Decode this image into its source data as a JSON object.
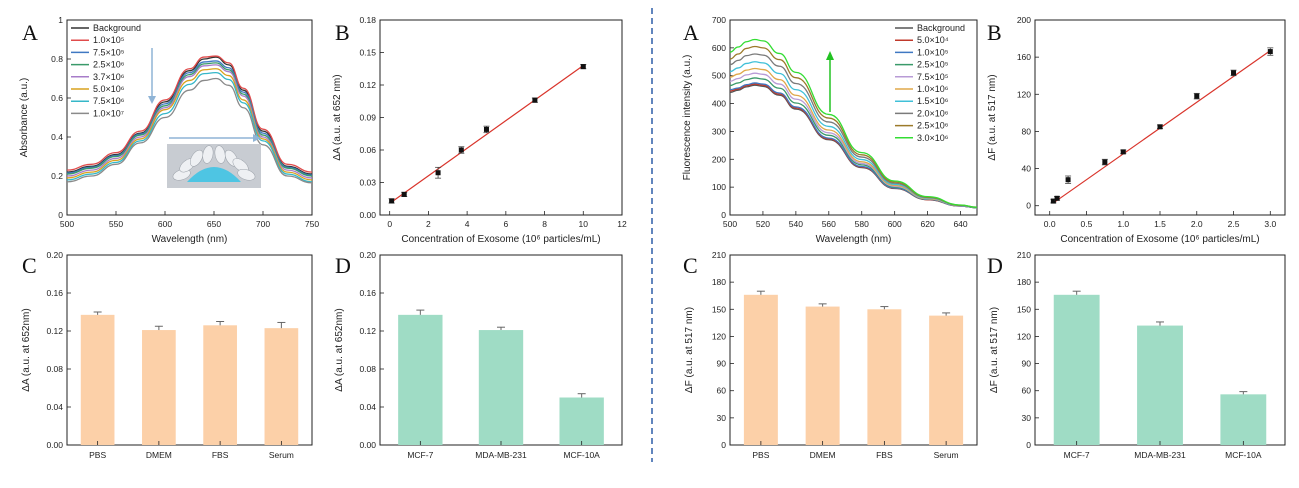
{
  "colors": {
    "divider": "#2f5fa8",
    "bar_blue": "#cfe6f7",
    "bar_pink": "#f5cfe0",
    "bar_orange": "#fcd0a8",
    "bar_green": "#9fdcc5",
    "fit_line": "#d9342b",
    "arrow_blue": "#8fb4d6",
    "arrow_green": "#22c222"
  },
  "chart_data": [
    {
      "panel": "A",
      "type": "line",
      "xlabel": "Wavelength (nm)",
      "ylabel": "Absorbance (a.u.)",
      "xlim": [
        500,
        750
      ],
      "ylim": [
        0,
        1.0
      ],
      "xticks": [
        500,
        550,
        600,
        650,
        700,
        750
      ],
      "yticks": [
        0.0,
        0.2,
        0.4,
        0.6,
        0.8,
        1.0
      ],
      "legend_position": "top-left",
      "x": [
        500,
        525,
        550,
        575,
        600,
        625,
        640,
        652,
        665,
        680,
        700,
        725,
        750
      ],
      "series": [
        {
          "name": "Background",
          "color": "#333333",
          "values": [
            0.22,
            0.25,
            0.31,
            0.42,
            0.58,
            0.74,
            0.8,
            0.81,
            0.77,
            0.64,
            0.43,
            0.25,
            0.21
          ]
        },
        {
          "name": "1.0×10⁵",
          "color": "#e04b4b",
          "values": [
            0.23,
            0.26,
            0.32,
            0.43,
            0.59,
            0.75,
            0.81,
            0.815,
            0.78,
            0.65,
            0.44,
            0.26,
            0.22
          ]
        },
        {
          "name": "7.5×10⁵",
          "color": "#3f78c2",
          "values": [
            0.215,
            0.245,
            0.305,
            0.415,
            0.57,
            0.73,
            0.785,
            0.79,
            0.755,
            0.63,
            0.42,
            0.245,
            0.205
          ]
        },
        {
          "name": "2.5×10⁶",
          "color": "#3a9a6a",
          "values": [
            0.21,
            0.24,
            0.3,
            0.41,
            0.56,
            0.72,
            0.775,
            0.78,
            0.745,
            0.62,
            0.41,
            0.24,
            0.2
          ]
        },
        {
          "name": "3.7×10⁶",
          "color": "#a77cc9",
          "values": [
            0.2,
            0.23,
            0.29,
            0.4,
            0.55,
            0.71,
            0.765,
            0.77,
            0.735,
            0.61,
            0.4,
            0.23,
            0.19
          ]
        },
        {
          "name": "5.0×10⁶",
          "color": "#d9a21e",
          "values": [
            0.19,
            0.22,
            0.28,
            0.39,
            0.54,
            0.69,
            0.745,
            0.75,
            0.715,
            0.59,
            0.39,
            0.22,
            0.18
          ]
        },
        {
          "name": "7.5×10⁶",
          "color": "#35b7c8",
          "values": [
            0.18,
            0.21,
            0.27,
            0.38,
            0.52,
            0.67,
            0.725,
            0.73,
            0.695,
            0.575,
            0.38,
            0.21,
            0.17
          ]
        },
        {
          "name": "1.0×10⁷",
          "color": "#8a8a8a",
          "values": [
            0.17,
            0.2,
            0.26,
            0.37,
            0.5,
            0.64,
            0.69,
            0.7,
            0.665,
            0.55,
            0.36,
            0.2,
            0.165
          ]
        }
      ]
    },
    {
      "panel": "B",
      "type": "scatter",
      "xlabel": "Concentration of Exosome (10⁶ particles/mL)",
      "ylabel": "ΔA (a.u. at 652 nm)",
      "xlim": [
        -0.5,
        12
      ],
      "ylim": [
        0,
        0.18
      ],
      "xticks": [
        0,
        2,
        4,
        6,
        8,
        10,
        12
      ],
      "yticks": [
        0.0,
        0.03,
        0.06,
        0.09,
        0.12,
        0.15,
        0.18
      ],
      "ytick_labels": [
        "0.00",
        "0.03",
        "0.06",
        "0.09",
        "0.12",
        "0.15",
        "0.18"
      ],
      "x": [
        0.1,
        0.75,
        2.5,
        3.7,
        5.0,
        7.5,
        10.0
      ],
      "y": [
        0.013,
        0.019,
        0.039,
        0.06,
        0.079,
        0.106,
        0.137
      ],
      "err": [
        0.002,
        0.002,
        0.005,
        0.003,
        0.003,
        0.002,
        0.002
      ],
      "fit": {
        "x": [
          0.1,
          10.0
        ],
        "y": [
          0.012,
          0.138
        ]
      }
    },
    {
      "panel": "C",
      "type": "bar",
      "ylabel": "ΔA (a.u. at 652nm)",
      "categories": [
        "PBS",
        "DMEM",
        "FBS",
        "Serum"
      ],
      "values": [
        0.137,
        0.121,
        0.126,
        0.123
      ],
      "err": [
        0.003,
        0.004,
        0.004,
        0.006
      ],
      "ylim": [
        0,
        0.2
      ],
      "yticks": [
        0.0,
        0.04,
        0.08,
        0.12,
        0.16,
        0.2
      ],
      "ytick_labels": [
        "0.00",
        "0.04",
        "0.08",
        "0.12",
        "0.16",
        "0.20"
      ]
    },
    {
      "panel": "D",
      "type": "bar",
      "ylabel": "ΔA (a.u. at 652nm)",
      "categories": [
        "MCF-7",
        "MDA-MB-231",
        "MCF-10A"
      ],
      "values": [
        0.137,
        0.121,
        0.05
      ],
      "err": [
        0.005,
        0.003,
        0.004
      ],
      "ylim": [
        0,
        0.2
      ],
      "yticks": [
        0.0,
        0.04,
        0.08,
        0.12,
        0.16,
        0.2
      ],
      "ytick_labels": [
        "0.00",
        "0.04",
        "0.08",
        "0.12",
        "0.16",
        "0.20"
      ]
    },
    {
      "panel": "A",
      "type": "line",
      "xlabel": "Wavelength (nm)",
      "ylabel": "Fluorescence intensity (a.u.)",
      "xlim": [
        500,
        650
      ],
      "ylim": [
        0,
        700
      ],
      "xticks": [
        500,
        520,
        540,
        560,
        580,
        600,
        620,
        640
      ],
      "yticks": [
        0,
        100,
        200,
        300,
        400,
        500,
        600,
        700
      ],
      "legend_position": "top-right",
      "x": [
        500,
        505,
        510,
        515,
        520,
        530,
        540,
        560,
        580,
        600,
        620,
        640,
        650
      ],
      "series": [
        {
          "name": "Background",
          "color": "#555555",
          "values": [
            440,
            448,
            460,
            466,
            462,
            430,
            380,
            270,
            170,
            95,
            55,
            32,
            26
          ]
        },
        {
          "name": "5.0×10⁴",
          "color": "#c0392b",
          "values": [
            445,
            452,
            464,
            470,
            466,
            434,
            384,
            273,
            172,
            96,
            55,
            32,
            26
          ]
        },
        {
          "name": "1.0×10⁵",
          "color": "#3f78c2",
          "values": [
            450,
            456,
            468,
            474,
            470,
            438,
            388,
            276,
            174,
            97,
            56,
            32,
            26
          ]
        },
        {
          "name": "2.5×10⁵",
          "color": "#3a9a6a",
          "values": [
            465,
            474,
            486,
            492,
            488,
            455,
            402,
            286,
            180,
            100,
            57,
            33,
            26
          ]
        },
        {
          "name": "7.5×10⁵",
          "color": "#b89bd6",
          "values": [
            480,
            490,
            503,
            509,
            505,
            470,
            416,
            295,
            185,
            103,
            58,
            33,
            27
          ]
        },
        {
          "name": "1.0×10⁶",
          "color": "#e0a84a",
          "values": [
            495,
            506,
            520,
            526,
            522,
            486,
            430,
            305,
            191,
            106,
            59,
            34,
            27
          ]
        },
        {
          "name": "1.5×10⁶",
          "color": "#40c0d8",
          "values": [
            515,
            528,
            544,
            550,
            546,
            508,
            450,
            318,
            199,
            110,
            61,
            34,
            27
          ]
        },
        {
          "name": "2.0×10⁶",
          "color": "#7a7a7a",
          "values": [
            540,
            555,
            572,
            578,
            574,
            534,
            472,
            334,
            208,
            114,
            63,
            35,
            28
          ]
        },
        {
          "name": "2.5×10⁶",
          "color": "#9c7a2a",
          "values": [
            560,
            578,
            598,
            605,
            600,
            558,
            493,
            348,
            216,
            118,
            64,
            35,
            28
          ]
        },
        {
          "name": "3.0×10⁶",
          "color": "#33dd33",
          "values": [
            585,
            603,
            622,
            630,
            625,
            580,
            512,
            361,
            224,
            122,
            66,
            36,
            28
          ]
        }
      ]
    },
    {
      "panel": "B",
      "type": "scatter",
      "xlabel": "Concentration of Exosome (10⁶ particles/mL)",
      "ylabel": "ΔF (a.u. at 517 nm)",
      "xlim": [
        -0.2,
        3.2
      ],
      "ylim": [
        -10,
        200
      ],
      "xticks": [
        0.0,
        0.5,
        1.0,
        1.5,
        2.0,
        2.5,
        3.0
      ],
      "xtick_labels": [
        "0.0",
        "0.5",
        "1.0",
        "1.5",
        "2.0",
        "2.5",
        "3.0"
      ],
      "yticks": [
        0,
        40,
        80,
        120,
        160,
        200
      ],
      "x": [
        0.05,
        0.1,
        0.25,
        0.75,
        1.0,
        1.5,
        2.0,
        2.5,
        3.0
      ],
      "y": [
        5,
        8,
        28,
        47,
        58,
        85,
        118,
        143,
        166
      ],
      "err": [
        2,
        2,
        4,
        3,
        2,
        2,
        3,
        3,
        4
      ],
      "fit": {
        "x": [
          0.05,
          3.0
        ],
        "y": [
          3,
          167
        ]
      }
    },
    {
      "panel": "C",
      "type": "bar",
      "ylabel": "ΔF (a.u. at 517 nm)",
      "categories": [
        "PBS",
        "DMEM",
        "FBS",
        "Serum"
      ],
      "values": [
        166,
        153,
        150,
        143
      ],
      "err": [
        4,
        3,
        3,
        3
      ],
      "ylim": [
        0,
        210
      ],
      "yticks": [
        0,
        30,
        60,
        90,
        120,
        150,
        180,
        210
      ]
    },
    {
      "panel": "D",
      "type": "bar",
      "ylabel": "ΔF (a.u. at 517 nm)",
      "categories": [
        "MCF-7",
        "MDA-MB-231",
        "MCF-10A"
      ],
      "values": [
        166,
        132,
        56
      ],
      "err": [
        4,
        4,
        3
      ],
      "ylim": [
        0,
        210
      ],
      "yticks": [
        0,
        30,
        60,
        90,
        120,
        150,
        180,
        210
      ]
    }
  ]
}
